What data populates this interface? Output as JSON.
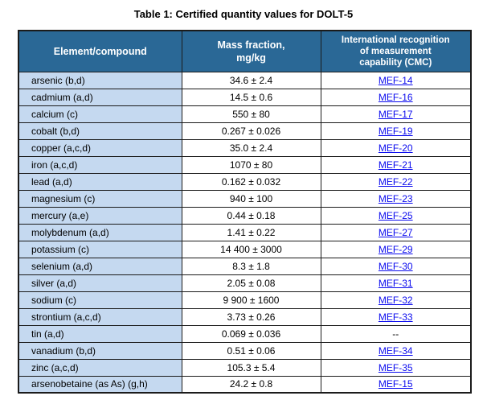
{
  "title": "Table 1: Certified quantity values for DOLT-5",
  "colors": {
    "header-bg": "#2A6896",
    "header-fg": "#FFFFFF",
    "label-bg": "#C5D9F0",
    "border": "#1B1B1B",
    "link": "#0B0BEE",
    "text": "#000000",
    "page-bg": "#FFFFFF"
  },
  "table": {
    "headers": [
      "Element/compound",
      "Mass fraction,\nmg/kg",
      "International recognition\nof measurement\ncapability (CMC)"
    ],
    "rows": [
      {
        "element": "arsenic (b,d)",
        "mass_fraction": "34.6 ± 2.4",
        "cmc": "MEF-14",
        "cmc_is_link": true
      },
      {
        "element": "cadmium (a,d)",
        "mass_fraction": "14.5 ± 0.6",
        "cmc": "MEF-16",
        "cmc_is_link": true
      },
      {
        "element": "calcium (c)",
        "mass_fraction": "550 ± 80",
        "cmc": "MEF-17",
        "cmc_is_link": true
      },
      {
        "element": "cobalt (b,d)",
        "mass_fraction": "0.267 ± 0.026",
        "cmc": "MEF-19",
        "cmc_is_link": true
      },
      {
        "element": "copper (a,c,d)",
        "mass_fraction": "35.0 ± 2.4",
        "cmc": "MEF-20",
        "cmc_is_link": true
      },
      {
        "element": "iron (a,c,d)",
        "mass_fraction": "1070 ± 80",
        "cmc": "MEF-21",
        "cmc_is_link": true
      },
      {
        "element": "lead (a,d)",
        "mass_fraction": "0.162 ± 0.032",
        "cmc": "MEF-22",
        "cmc_is_link": true
      },
      {
        "element": "magnesium (c)",
        "mass_fraction": "940 ± 100",
        "cmc": "MEF-23",
        "cmc_is_link": true
      },
      {
        "element": "mercury (a,e)",
        "mass_fraction": "0.44 ± 0.18",
        "cmc": "MEF-25",
        "cmc_is_link": true
      },
      {
        "element": "molybdenum (a,d)",
        "mass_fraction": "1.41 ± 0.22",
        "cmc": "MEF-27",
        "cmc_is_link": true
      },
      {
        "element": "potassium (c)",
        "mass_fraction": "14 400 ± 3000",
        "cmc": "MEF-29",
        "cmc_is_link": true
      },
      {
        "element": "selenium (a,d)",
        "mass_fraction": "8.3 ± 1.8",
        "cmc": "MEF-30",
        "cmc_is_link": true
      },
      {
        "element": "silver (a,d)",
        "mass_fraction": "2.05 ± 0.08",
        "cmc": "MEF-31",
        "cmc_is_link": true
      },
      {
        "element": "sodium (c)",
        "mass_fraction": "9 900 ± 1600",
        "cmc": "MEF-32",
        "cmc_is_link": true
      },
      {
        "element": "strontium (a,c,d)",
        "mass_fraction": "3.73 ± 0.26",
        "cmc": "MEF-33",
        "cmc_is_link": true
      },
      {
        "element": "tin (a,d)",
        "mass_fraction": "0.069 ± 0.036",
        "cmc": "--",
        "cmc_is_link": false
      },
      {
        "element": "vanadium (b,d)",
        "mass_fraction": "0.51 ± 0.06",
        "cmc": "MEF-34",
        "cmc_is_link": true
      },
      {
        "element": "zinc (a,c,d)",
        "mass_fraction": "105.3 ± 5.4",
        "cmc": "MEF-35",
        "cmc_is_link": true
      },
      {
        "element": "arsenobetaine (as As) (g,h)",
        "mass_fraction": "24.2 ± 0.8",
        "cmc": "MEF-15",
        "cmc_is_link": true
      }
    ]
  }
}
